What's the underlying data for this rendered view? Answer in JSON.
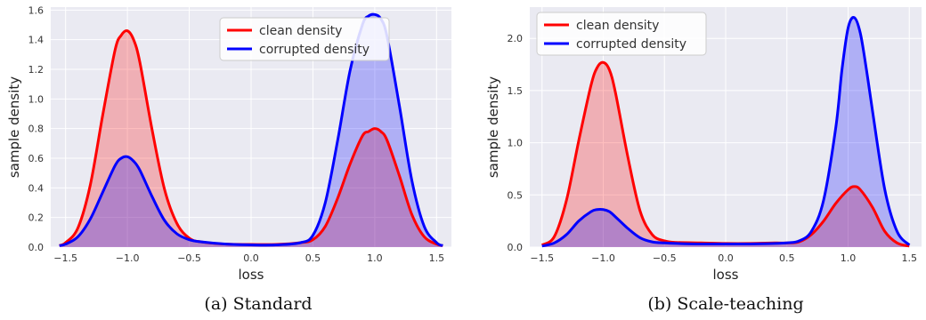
{
  "colors": {
    "clean": "#ff0000",
    "corrupted": "#0000ff"
  },
  "chart_data": [
    {
      "type": "area",
      "caption": "(a) Standard",
      "xlabel": "loss",
      "ylabel": "sample density",
      "xlim": [
        -1.62,
        1.62
      ],
      "ylim": [
        0,
        1.62
      ],
      "xticks": [
        -1.5,
        -1.0,
        -0.5,
        0.0,
        0.5,
        1.0,
        1.5
      ],
      "xtick_labels": [
        "−1.5",
        "−1.0",
        "−0.5",
        "0.0",
        "0.5",
        "1.0",
        "1.5"
      ],
      "yticks": [
        0.0,
        0.2,
        0.4,
        0.6,
        0.8,
        1.0,
        1.2,
        1.4,
        1.6
      ],
      "ytick_labels": [
        "0.0",
        "0.2",
        "0.4",
        "0.6",
        "0.8",
        "1.0",
        "1.2",
        "1.4",
        "1.6"
      ],
      "grid": true,
      "legend_position": "top-center",
      "series": [
        {
          "name": "clean density",
          "x": [
            -1.55,
            -1.5,
            -1.4,
            -1.3,
            -1.2,
            -1.1,
            -1.05,
            -1.0,
            -0.95,
            -0.9,
            -0.8,
            -0.7,
            -0.6,
            -0.5,
            -0.4,
            -0.2,
            0.0,
            0.2,
            0.4,
            0.5,
            0.6,
            0.7,
            0.8,
            0.9,
            0.95,
            1.0,
            1.05,
            1.1,
            1.2,
            1.3,
            1.4,
            1.5,
            1.55
          ],
          "y": [
            0.01,
            0.03,
            0.13,
            0.42,
            0.89,
            1.33,
            1.43,
            1.46,
            1.4,
            1.25,
            0.79,
            0.39,
            0.16,
            0.06,
            0.035,
            0.02,
            0.018,
            0.018,
            0.03,
            0.05,
            0.14,
            0.33,
            0.56,
            0.75,
            0.78,
            0.8,
            0.78,
            0.72,
            0.48,
            0.22,
            0.07,
            0.02,
            0.01
          ]
        },
        {
          "name": "corrupted density",
          "x": [
            -1.55,
            -1.5,
            -1.4,
            -1.3,
            -1.2,
            -1.1,
            -1.05,
            -1.0,
            -0.95,
            -0.9,
            -0.8,
            -0.7,
            -0.6,
            -0.5,
            -0.4,
            -0.2,
            0.0,
            0.2,
            0.4,
            0.5,
            0.6,
            0.7,
            0.8,
            0.9,
            0.95,
            1.0,
            1.05,
            1.1,
            1.2,
            1.3,
            1.4,
            1.5,
            1.55
          ],
          "y": [
            0.01,
            0.02,
            0.07,
            0.19,
            0.37,
            0.55,
            0.6,
            0.61,
            0.58,
            0.52,
            0.34,
            0.18,
            0.09,
            0.05,
            0.035,
            0.02,
            0.015,
            0.015,
            0.03,
            0.08,
            0.3,
            0.72,
            1.19,
            1.5,
            1.56,
            1.57,
            1.54,
            1.42,
            0.95,
            0.45,
            0.14,
            0.03,
            0.01
          ]
        }
      ]
    },
    {
      "type": "area",
      "caption": "(b) Scale-teaching",
      "xlabel": "loss",
      "ylabel": "sample density",
      "xlim": [
        -1.6,
        1.6
      ],
      "ylim": [
        0,
        2.3
      ],
      "xticks": [
        -1.5,
        -1.0,
        -0.5,
        0.0,
        0.5,
        1.0,
        1.5
      ],
      "xtick_labels": [
        "−1.5",
        "−1.0",
        "−0.5",
        "0.0",
        "0.5",
        "1.0",
        "1.5"
      ],
      "yticks": [
        0.0,
        0.5,
        1.0,
        1.5,
        2.0
      ],
      "ytick_labels": [
        "0.0",
        "0.5",
        "1.0",
        "1.5",
        "2.0"
      ],
      "grid": true,
      "legend_position": "top-left",
      "series": [
        {
          "name": "clean density",
          "x": [
            -1.5,
            -1.4,
            -1.3,
            -1.2,
            -1.1,
            -1.05,
            -1.0,
            -0.95,
            -0.9,
            -0.8,
            -0.7,
            -0.6,
            -0.5,
            -0.4,
            -0.2,
            0.0,
            0.2,
            0.4,
            0.5,
            0.6,
            0.7,
            0.8,
            0.9,
            1.0,
            1.05,
            1.1,
            1.2,
            1.3,
            1.4,
            1.5
          ],
          "y": [
            0.02,
            0.1,
            0.45,
            1.02,
            1.55,
            1.72,
            1.77,
            1.7,
            1.48,
            0.87,
            0.35,
            0.12,
            0.06,
            0.045,
            0.04,
            0.035,
            0.035,
            0.04,
            0.04,
            0.05,
            0.12,
            0.25,
            0.42,
            0.55,
            0.58,
            0.55,
            0.38,
            0.15,
            0.04,
            0.01
          ]
        },
        {
          "name": "corrupted density",
          "x": [
            -1.5,
            -1.4,
            -1.3,
            -1.2,
            -1.1,
            -1.05,
            -1.0,
            -0.95,
            -0.9,
            -0.8,
            -0.7,
            -0.6,
            -0.5,
            -0.4,
            -0.2,
            0.0,
            0.2,
            0.4,
            0.5,
            0.6,
            0.7,
            0.8,
            0.9,
            0.95,
            1.0,
            1.05,
            1.1,
            1.15,
            1.2,
            1.3,
            1.4,
            1.5
          ],
          "y": [
            0.01,
            0.04,
            0.12,
            0.25,
            0.34,
            0.36,
            0.36,
            0.34,
            0.29,
            0.18,
            0.09,
            0.05,
            0.04,
            0.035,
            0.03,
            0.03,
            0.03,
            0.035,
            0.04,
            0.06,
            0.15,
            0.45,
            1.15,
            1.7,
            2.1,
            2.2,
            2.05,
            1.7,
            1.3,
            0.55,
            0.15,
            0.02
          ]
        }
      ]
    }
  ]
}
